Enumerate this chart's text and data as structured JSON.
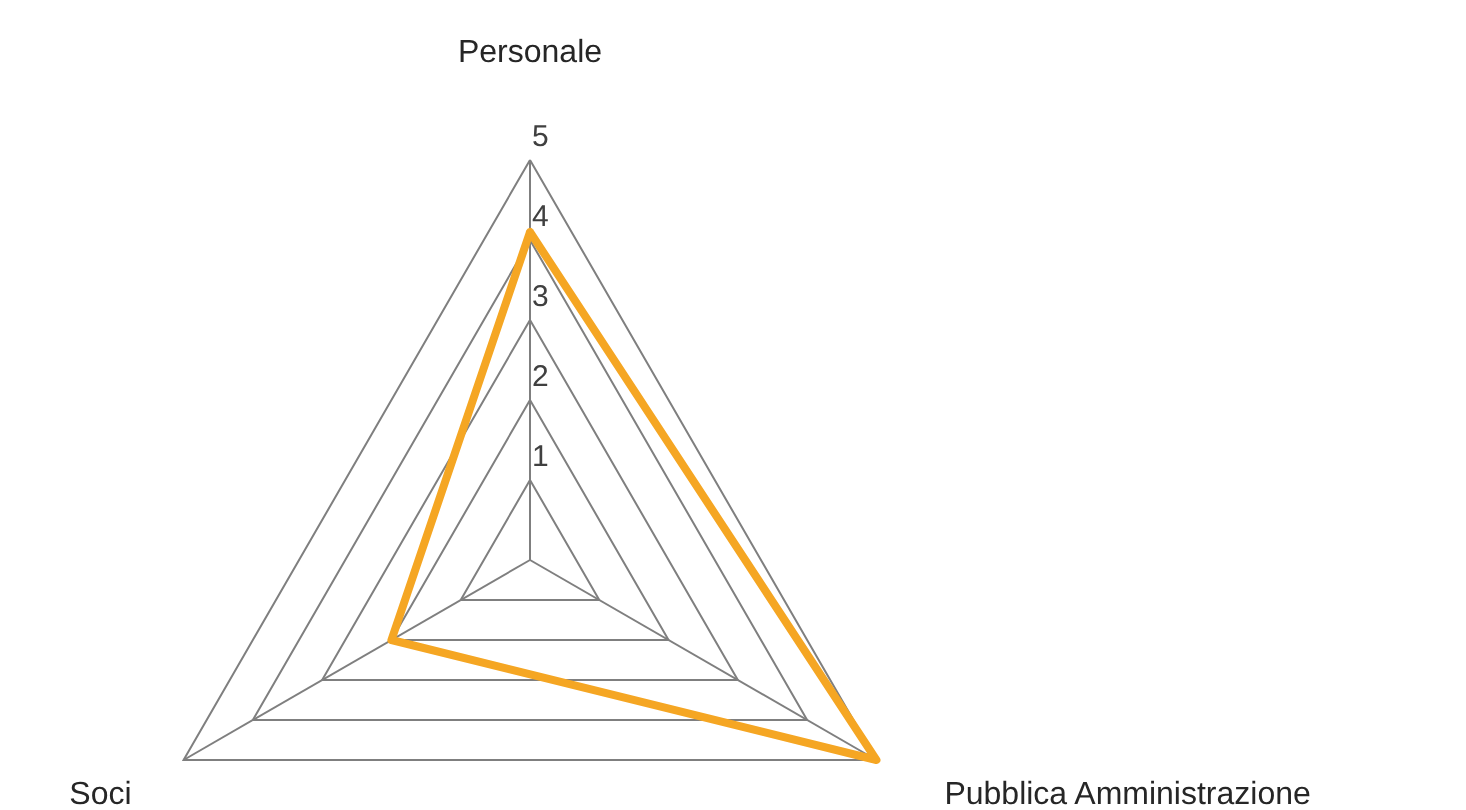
{
  "chart_data": {
    "type": "radar",
    "categories": [
      "Personale",
      "Pubblica Amministrazione",
      "Soci"
    ],
    "series": [
      {
        "color": "#f5a623",
        "values": [
          4.1,
          5,
          2
        ]
      }
    ],
    "ylim": [
      0,
      5
    ],
    "yticks": [
      1,
      2,
      3,
      4,
      5
    ],
    "grid": true
  }
}
